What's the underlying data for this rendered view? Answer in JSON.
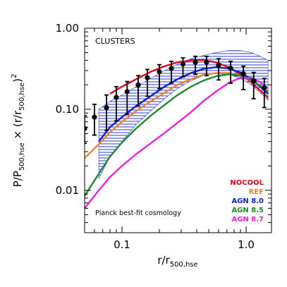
{
  "chart_data": {
    "type": "line",
    "title": "",
    "xlabel": "r/r",
    "xlabel_sub": "500,hse",
    "ylabel_parts": [
      "P/P",
      "500,hse",
      " × (r/r",
      "500,hse",
      ")",
      "2"
    ],
    "x_scale": "log",
    "y_scale": "log",
    "xlim": [
      0.05,
      1.6
    ],
    "ylim": [
      0.003,
      1.0
    ],
    "x_ticks": [
      {
        "value": 0.1,
        "label": "0.1"
      },
      {
        "value": 1.0,
        "label": "1.0"
      }
    ],
    "y_ticks": [
      {
        "value": 0.01,
        "label": "0.01"
      },
      {
        "value": 0.1,
        "label": "0.10"
      },
      {
        "value": 1.0,
        "label": "1.00"
      }
    ],
    "annotations": {
      "panel_label": "CLUSTERS",
      "cosmology": "Planck best-fit cosmology"
    },
    "legend_position": "bottom-right",
    "series": [
      {
        "name": "NOCOOL",
        "color": "#e8001c",
        "x": [
          0.08,
          0.1,
          0.13,
          0.17,
          0.22,
          0.28,
          0.36,
          0.45,
          0.57,
          0.72,
          0.9,
          1.1,
          1.3,
          1.5
        ],
        "y": [
          0.155,
          0.19,
          0.235,
          0.29,
          0.34,
          0.38,
          0.4,
          0.405,
          0.38,
          0.33,
          0.27,
          0.215,
          0.17,
          0.14
        ]
      },
      {
        "name": "REF",
        "color": "#f0822a",
        "x": [
          0.05,
          0.065,
          0.08,
          0.1,
          0.13,
          0.17,
          0.22,
          0.28,
          0.36,
          0.45,
          0.57,
          0.72,
          0.9,
          1.1,
          1.3,
          1.5
        ],
        "y": [
          0.025,
          0.037,
          0.052,
          0.07,
          0.095,
          0.125,
          0.16,
          0.2,
          0.235,
          0.265,
          0.28,
          0.28,
          0.26,
          0.225,
          0.19,
          0.16
        ]
      },
      {
        "name": "AGN 8.0",
        "color": "#0b1fd8",
        "x": [
          0.065,
          0.08,
          0.1,
          0.13,
          0.17,
          0.22,
          0.28,
          0.36,
          0.45,
          0.57,
          0.72,
          0.9,
          1.1,
          1.3,
          1.5
        ],
        "y": [
          0.04,
          0.06,
          0.08,
          0.11,
          0.145,
          0.19,
          0.235,
          0.28,
          0.315,
          0.33,
          0.32,
          0.285,
          0.235,
          0.19,
          0.155
        ]
      },
      {
        "name": "AGN 8.5",
        "color": "#1e8a2e",
        "x": [
          0.05,
          0.065,
          0.08,
          0.1,
          0.13,
          0.17,
          0.22,
          0.28,
          0.36,
          0.45,
          0.57,
          0.72,
          0.9,
          1.1,
          1.3,
          1.5
        ],
        "y": [
          0.0085,
          0.016,
          0.026,
          0.039,
          0.058,
          0.083,
          0.113,
          0.15,
          0.19,
          0.225,
          0.255,
          0.27,
          0.26,
          0.23,
          0.195,
          0.165
        ]
      },
      {
        "name": "AGN 8.7",
        "color": "#ee1fe0",
        "x": [
          0.05,
          0.065,
          0.08,
          0.1,
          0.13,
          0.17,
          0.22,
          0.28,
          0.36,
          0.45,
          0.57,
          0.72,
          0.9,
          1.1,
          1.3,
          1.5
        ],
        "y": [
          0.006,
          0.01,
          0.0145,
          0.02,
          0.028,
          0.038,
          0.051,
          0.068,
          0.092,
          0.125,
          0.165,
          0.21,
          0.245,
          0.245,
          0.215,
          0.18
        ]
      }
    ],
    "observed_band": {
      "color": "#2d3cd6",
      "x": [
        0.065,
        0.08,
        0.1,
        0.13,
        0.17,
        0.22,
        0.28,
        0.36,
        0.45,
        0.57,
        0.72,
        0.9,
        1.1,
        1.3,
        1.5
      ],
      "lower": [
        0.014,
        0.026,
        0.04,
        0.065,
        0.095,
        0.135,
        0.18,
        0.225,
        0.26,
        0.275,
        0.27,
        0.24,
        0.2,
        0.16,
        0.13
      ],
      "upper": [
        0.1,
        0.125,
        0.15,
        0.19,
        0.24,
        0.3,
        0.36,
        0.42,
        0.46,
        0.5,
        0.53,
        0.53,
        0.5,
        0.45,
        0.4
      ]
    },
    "data_points": {
      "color": "#000000",
      "x": [
        0.05,
        0.06,
        0.075,
        0.09,
        0.11,
        0.135,
        0.16,
        0.2,
        0.25,
        0.31,
        0.39,
        0.48,
        0.6,
        0.75,
        0.95,
        1.15,
        1.4
      ],
      "y": [
        0.058,
        0.08,
        0.105,
        0.14,
        0.165,
        0.2,
        0.245,
        0.29,
        0.32,
        0.36,
        0.38,
        0.38,
        0.35,
        0.32,
        0.275,
        0.225,
        0.185
      ],
      "yerr_low": [
        0.02,
        0.032,
        0.05,
        0.068,
        0.078,
        0.09,
        0.1,
        0.11,
        0.11,
        0.11,
        0.11,
        0.12,
        0.12,
        0.11,
        0.1,
        0.09,
        0.08
      ],
      "yerr_high": [
        0.025,
        0.035,
        0.045,
        0.05,
        0.055,
        0.06,
        0.065,
        0.065,
        0.07,
        0.07,
        0.07,
        0.07,
        0.07,
        0.07,
        0.065,
        0.06,
        0.055
      ]
    }
  }
}
